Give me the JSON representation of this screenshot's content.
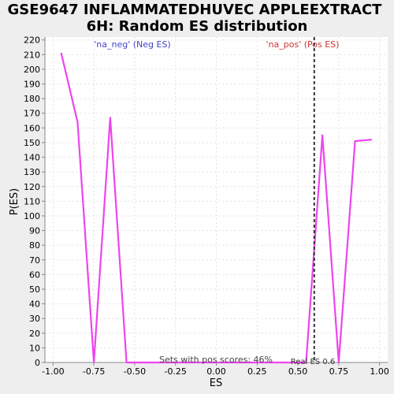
{
  "chart_data": {
    "type": "line",
    "title_line1": "GSE9647 INFLAMMATEDHUVEC APPLEEXTRACT",
    "title_line2": "6H: Random ES distribution",
    "xlabel": "ES",
    "ylabel": "P(ES)",
    "xlim": [
      -1.05,
      1.05
    ],
    "ylim": [
      0,
      222
    ],
    "x_ticks": [
      -1.0,
      -0.75,
      -0.5,
      -0.25,
      0.0,
      0.25,
      0.5,
      0.75,
      1.0
    ],
    "x_tick_labels": [
      "-1.00",
      "-0.75",
      "-0.50",
      "-0.25",
      "0.00",
      "0.25",
      "0.50",
      "0.75",
      "1.00"
    ],
    "y_ticks": [
      0,
      10,
      20,
      30,
      40,
      50,
      60,
      70,
      80,
      90,
      100,
      110,
      120,
      130,
      140,
      150,
      160,
      170,
      180,
      190,
      200,
      210,
      220
    ],
    "y_tick_labels": [
      "0",
      "10",
      "20",
      "30",
      "40",
      "50",
      "60",
      "70",
      "80",
      "90",
      "100",
      "110",
      "120",
      "130",
      "140",
      "150",
      "160",
      "170",
      "180",
      "190",
      "200",
      "210",
      "220"
    ],
    "grid": true,
    "series": [
      {
        "color": "#ee44ee",
        "x": [
          -0.95,
          -0.85,
          -0.75,
          -0.65,
          -0.55,
          0.55,
          0.65,
          0.75,
          0.85,
          0.95
        ],
        "y": [
          211,
          164,
          0,
          167,
          0,
          0,
          155,
          0,
          151,
          152
        ]
      }
    ],
    "real_es": 0.6,
    "real_es_label": "Real ES 0.6",
    "neg_label": "'na_neg' (Neg ES)",
    "neg_color": "#4444cc",
    "pos_label": "'na_pos' (Pos ES)",
    "pos_color": "#cc3333",
    "sets_label": "Sets with pos scores: 46%"
  }
}
